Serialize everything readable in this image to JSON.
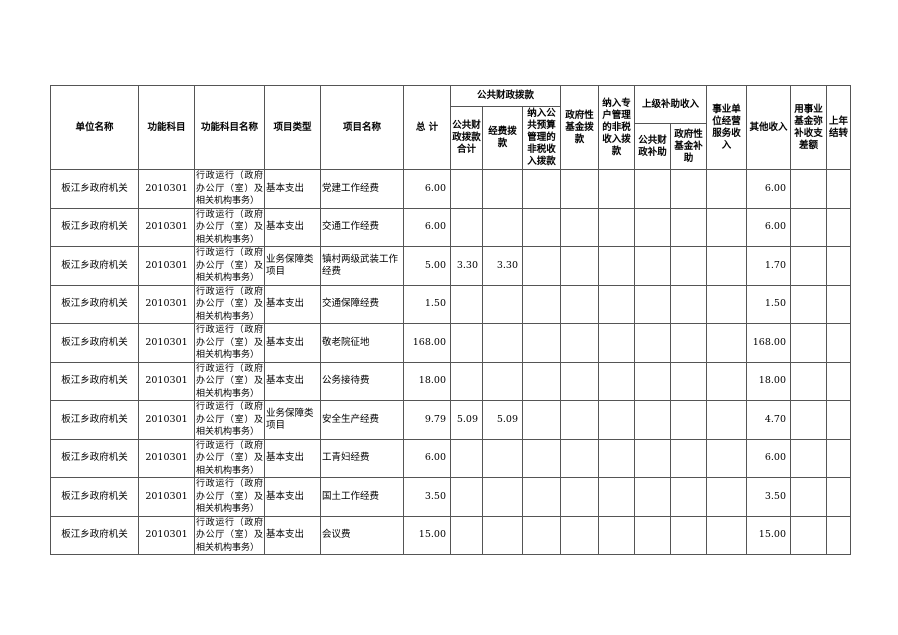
{
  "headers": {
    "unit_name": "单位名称",
    "func_code": "功能科目",
    "func_name": "功能科目名称",
    "proj_type": "项目类型",
    "proj_name": "项目名称",
    "total": "总 计",
    "public_finance": "公共财政拨款",
    "pf_total": "公共财政拨款合计",
    "pf_expense": "经费拨款",
    "pf_nontax": "纳入公共预算管理的非税收入拨款",
    "gov_fund": "政府性基金拨款",
    "special_nontax": "纳入专户管理的非税收入拨款",
    "superior": "上级补助收入",
    "sup_public": "公共财政补助",
    "sup_fund": "政府性基金补助",
    "business": "事业单位经营服务收入",
    "other": "其他收入",
    "fund_balance": "用事业基金弥补收支差额",
    "carryover": "上年结转"
  },
  "rows": [
    {
      "unit": "板江乡政府机关",
      "code": "2010301",
      "fname": "行政运行（政府办公厅（室）及相关机构事务）",
      "type": "基本支出",
      "name": "党建工作经费",
      "total": "6.00",
      "pf_total": "",
      "pf_expense": "",
      "other": "6.00"
    },
    {
      "unit": "板江乡政府机关",
      "code": "2010301",
      "fname": "行政运行（政府办公厅（室）及相关机构事务）",
      "type": "基本支出",
      "name": "交通工作经费",
      "total": "6.00",
      "pf_total": "",
      "pf_expense": "",
      "other": "6.00"
    },
    {
      "unit": "板江乡政府机关",
      "code": "2010301",
      "fname": "行政运行（政府办公厅（室）及相关机构事务）",
      "type": "业务保障类项目",
      "name": "镇村两级武装工作经费",
      "total": "5.00",
      "pf_total": "3.30",
      "pf_expense": "3.30",
      "other": "1.70"
    },
    {
      "unit": "板江乡政府机关",
      "code": "2010301",
      "fname": "行政运行（政府办公厅（室）及相关机构事务）",
      "type": "基本支出",
      "name": "交通保障经费",
      "total": "1.50",
      "pf_total": "",
      "pf_expense": "",
      "other": "1.50"
    },
    {
      "unit": "板江乡政府机关",
      "code": "2010301",
      "fname": "行政运行（政府办公厅（室）及相关机构事务）",
      "type": "基本支出",
      "name": "敬老院征地",
      "total": "168.00",
      "pf_total": "",
      "pf_expense": "",
      "other": "168.00"
    },
    {
      "unit": "板江乡政府机关",
      "code": "2010301",
      "fname": "行政运行（政府办公厅（室）及相关机构事务）",
      "type": "基本支出",
      "name": "公务接待费",
      "total": "18.00",
      "pf_total": "",
      "pf_expense": "",
      "other": "18.00"
    },
    {
      "unit": "板江乡政府机关",
      "code": "2010301",
      "fname": "行政运行（政府办公厅（室）及相关机构事务）",
      "type": "业务保障类项目",
      "name": "安全生产经费",
      "total": "9.79",
      "pf_total": "5.09",
      "pf_expense": "5.09",
      "other": "4.70"
    },
    {
      "unit": "板江乡政府机关",
      "code": "2010301",
      "fname": "行政运行（政府办公厅（室）及相关机构事务）",
      "type": "基本支出",
      "name": "工青妇经费",
      "total": "6.00",
      "pf_total": "",
      "pf_expense": "",
      "other": "6.00"
    },
    {
      "unit": "板江乡政府机关",
      "code": "2010301",
      "fname": "行政运行（政府办公厅（室）及相关机构事务）",
      "type": "基本支出",
      "name": "国土工作经费",
      "total": "3.50",
      "pf_total": "",
      "pf_expense": "",
      "other": "3.50"
    },
    {
      "unit": "板江乡政府机关",
      "code": "2010301",
      "fname": "行政运行（政府办公厅（室）及相关机构事务）",
      "type": "基本支出",
      "name": "会议费",
      "total": "15.00",
      "pf_total": "",
      "pf_expense": "",
      "other": "15.00"
    }
  ]
}
